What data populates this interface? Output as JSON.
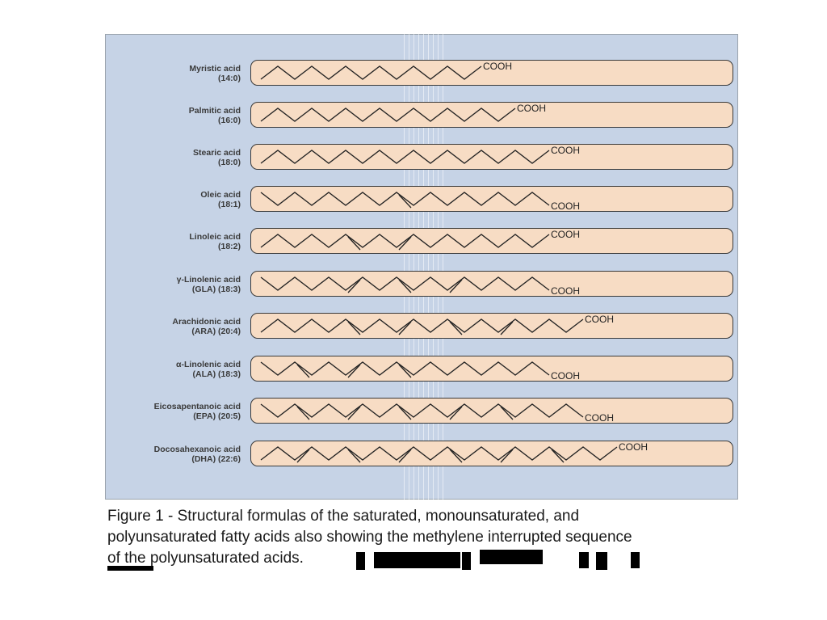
{
  "figure": {
    "background": "#c6d3e6",
    "pill_fill": "#f7dcc4",
    "carboxyl_label": "COOH",
    "rows": [
      {
        "name": "Myristic acid",
        "notation": "(14:0)",
        "carbons": 14,
        "double_bonds": [],
        "cooh_pos": "up"
      },
      {
        "name": "Palmitic acid",
        "notation": "(16:0)",
        "carbons": 16,
        "double_bonds": [],
        "cooh_pos": "up"
      },
      {
        "name": "Stearic acid",
        "notation": "(18:0)",
        "carbons": 18,
        "double_bonds": [],
        "cooh_pos": "up"
      },
      {
        "name": "Oleic acid",
        "notation": "(18:1)",
        "carbons": 18,
        "double_bonds": [
          9
        ],
        "cooh_pos": "down"
      },
      {
        "name": "Linoleic acid",
        "notation": "(18:2)",
        "carbons": 18,
        "double_bonds": [
          6,
          9
        ],
        "cooh_pos": "up"
      },
      {
        "name": "γ-Linolenic acid",
        "notation": "(GLA) (18:3)",
        "carbons": 18,
        "double_bonds": [
          6,
          9,
          12
        ],
        "cooh_pos": "down"
      },
      {
        "name": "Arachidonic acid",
        "notation": "(ARA) (20:4)",
        "carbons": 20,
        "double_bonds": [
          6,
          9,
          12,
          15
        ],
        "cooh_pos": "up"
      },
      {
        "name": "α-Linolenic acid",
        "notation": "(ALA) (18:3)",
        "carbons": 18,
        "double_bonds": [
          3,
          6,
          9
        ],
        "cooh_pos": "down"
      },
      {
        "name": "Eicosapentanoic acid",
        "notation": "(EPA) (20:5)",
        "carbons": 20,
        "double_bonds": [
          3,
          6,
          9,
          12,
          15
        ],
        "cooh_pos": "down"
      },
      {
        "name": "Docosahexanoic acid",
        "notation": "(DHA) (22:6)",
        "carbons": 22,
        "double_bonds": [
          3,
          6,
          9,
          12,
          15,
          18
        ],
        "cooh_pos": "up"
      }
    ]
  },
  "caption": {
    "line1": "Figure 1 -  Structural  formulas  of  the  saturated, monounsaturated, and",
    "line2": "polyunsaturated  fatty  acids  also showing the methylene interrupted sequence",
    "line3": "of the polyunsaturated acids."
  }
}
